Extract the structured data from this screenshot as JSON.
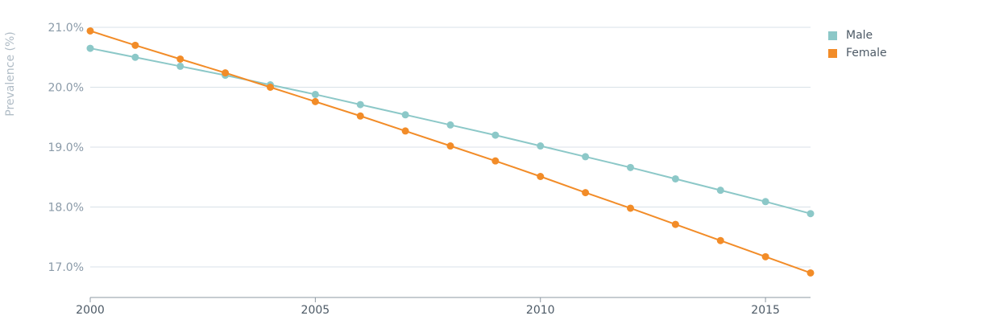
{
  "chart_data": {
    "type": "line",
    "title": "",
    "xlabel": "",
    "ylabel": "Prevalence (%)",
    "x": [
      2000,
      2001,
      2002,
      2003,
      2004,
      2005,
      2006,
      2007,
      2008,
      2009,
      2010,
      2011,
      2012,
      2013,
      2014,
      2015,
      2016
    ],
    "xticks": [
      2000,
      2005,
      2010,
      2015
    ],
    "xtick_labels": [
      "2000",
      "2005",
      "2010",
      "2015"
    ],
    "xlim": [
      2000,
      2016
    ],
    "yticks": [
      17.0,
      18.0,
      19.0,
      20.0,
      21.0
    ],
    "ytick_labels": [
      "17.0%",
      "18.0%",
      "19.0%",
      "20.0%",
      "21.0%"
    ],
    "ylim": [
      16.5,
      21.0
    ],
    "grid": true,
    "legend_position": "right",
    "series": [
      {
        "name": "Male",
        "color": "#8cc8c8",
        "values": [
          20.65,
          20.5,
          20.35,
          20.2,
          20.04,
          19.88,
          19.71,
          19.54,
          19.37,
          19.2,
          19.02,
          18.84,
          18.66,
          18.47,
          18.28,
          18.09,
          17.89
        ]
      },
      {
        "name": "Female",
        "color": "#f28c28",
        "values": [
          20.94,
          20.7,
          20.47,
          20.24,
          20.0,
          19.76,
          19.52,
          19.27,
          19.02,
          18.77,
          18.51,
          18.24,
          17.98,
          17.71,
          17.44,
          17.17,
          16.9
        ]
      }
    ]
  },
  "colors": {
    "grid": "#d8e1e8",
    "axis": "#8e99a3"
  }
}
